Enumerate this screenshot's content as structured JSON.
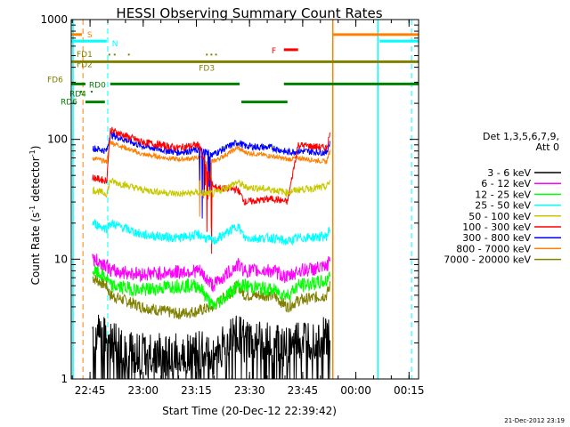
{
  "chart_data": {
    "type": "line",
    "title": "HESSI Observing Summary Count Rates",
    "xlabel": "Start Time (20-Dec-12 22:39:42)",
    "ylabel": "Count Rate (s",
    "ylabel_sup": "-1",
    "ylabel_mid": " detector",
    "ylabel_end": ")",
    "yscale": "log",
    "ylim": [
      1,
      1000
    ],
    "xlim_minutes": [
      0,
      98
    ],
    "x_tick_labels": [
      "22:45",
      "23:00",
      "23:15",
      "23:30",
      "23:45",
      "00:00",
      "00:15"
    ],
    "x_tick_minutes": [
      5.3,
      20.3,
      35.3,
      50.3,
      65.3,
      80.3,
      95.3
    ],
    "y_tick_labels": [
      "1",
      "10",
      "100",
      "1000"
    ],
    "y_tick_values": [
      1,
      10,
      100,
      1000
    ],
    "legend_title": [
      "Det 1,3,5,6,7,9,",
      "Att 0"
    ],
    "legend_position": "right",
    "series": [
      {
        "name": "3 - 6 keV",
        "color": "#000000",
        "x": [
          6,
          10,
          11,
          20,
          30,
          36,
          40,
          47,
          49,
          57,
          61,
          64,
          72,
          73
        ],
        "y": [
          2.5,
          2.5,
          2.0,
          1.6,
          1.6,
          1.7,
          1.5,
          2.5,
          2.0,
          2.0,
          1.8,
          2.0,
          2.2,
          2.5
        ]
      },
      {
        "name": "6 - 12 keV",
        "color": "#ff00ff",
        "x": [
          6,
          10,
          11,
          20,
          30,
          36,
          40,
          47,
          49,
          57,
          61,
          64,
          72,
          73
        ],
        "y": [
          10,
          9,
          8,
          7.5,
          7.8,
          8,
          6,
          9,
          8,
          8,
          7,
          8,
          8.5,
          10
        ]
      },
      {
        "name": "12 - 25 keV",
        "color": "#00ff00",
        "x": [
          6,
          10,
          11,
          20,
          30,
          36,
          40,
          47,
          49,
          57,
          61,
          64,
          72,
          73
        ],
        "y": [
          8,
          7,
          6,
          5.5,
          6,
          6,
          4,
          6,
          6,
          5.5,
          5,
          6,
          6.5,
          8
        ]
      },
      {
        "name": "25 - 50 keV",
        "color": "#00ffff",
        "x": [
          6,
          10,
          11,
          20,
          30,
          36,
          40,
          47,
          49,
          57,
          61,
          64,
          72,
          73
        ],
        "y": [
          20,
          18,
          20,
          16,
          15,
          16,
          14,
          19,
          15,
          15,
          14,
          15,
          15.5,
          18
        ]
      },
      {
        "name": "50 - 100 keV",
        "color": "#c8c800",
        "x": [
          6,
          10,
          11,
          20,
          30,
          36,
          40,
          47,
          49,
          57,
          61,
          64,
          72,
          73
        ],
        "y": [
          38,
          35,
          45,
          38,
          35,
          36,
          35,
          44,
          40,
          38,
          36,
          38,
          40,
          45
        ]
      },
      {
        "name": "100 - 300 keV",
        "color": "#ff0000",
        "x": [
          6,
          10,
          11,
          20,
          30,
          36,
          40,
          47,
          49,
          57,
          61,
          64,
          72,
          73
        ],
        "y": [
          48,
          45,
          120,
          95,
          85,
          90,
          40,
          38,
          30,
          32,
          30,
          90,
          85,
          110
        ]
      },
      {
        "name": "300 - 800 keV",
        "color": "#0000ff",
        "x": [
          6,
          10,
          11,
          20,
          30,
          36,
          40,
          47,
          49,
          57,
          61,
          64,
          72,
          73
        ],
        "y": [
          85,
          80,
          110,
          88,
          78,
          82,
          75,
          95,
          88,
          85,
          78,
          80,
          78,
          95
        ]
      },
      {
        "name": "800 - 7000 keV",
        "color": "#ff8000",
        "x": [
          6,
          10,
          11,
          20,
          30,
          36,
          40,
          47,
          49,
          57,
          61,
          64,
          72,
          73
        ],
        "y": [
          70,
          65,
          95,
          75,
          68,
          70,
          65,
          85,
          78,
          72,
          68,
          70,
          65,
          80
        ]
      },
      {
        "name": "7000 - 20000 keV",
        "color": "#808000",
        "x": [
          6,
          10,
          11,
          20,
          30,
          36,
          40,
          47,
          49,
          57,
          61,
          64,
          72,
          73
        ],
        "y": [
          7,
          6,
          5,
          4,
          3.5,
          3.7,
          4,
          6,
          5,
          5,
          4,
          4.5,
          5,
          6
        ]
      }
    ],
    "flag_labels": [
      {
        "label": "S",
        "color": "#ff8000"
      },
      {
        "label": "N",
        "color": "#00ffff"
      },
      {
        "label": "F",
        "color": "#ff0000"
      },
      {
        "label": "FD1",
        "color": "#808000"
      },
      {
        "label": "FD2",
        "color": "#808000"
      },
      {
        "label": "FD3",
        "color": "#808000"
      },
      {
        "label": "FD6",
        "color": "#808000"
      },
      {
        "label": "RD0",
        "color": "#008000"
      },
      {
        "label": "RD4",
        "color": "#008000"
      },
      {
        "label": "RD6",
        "color": "#008000"
      }
    ],
    "grid": false
  },
  "footer": {
    "timestamp": "21-Dec-2012 23:19"
  }
}
